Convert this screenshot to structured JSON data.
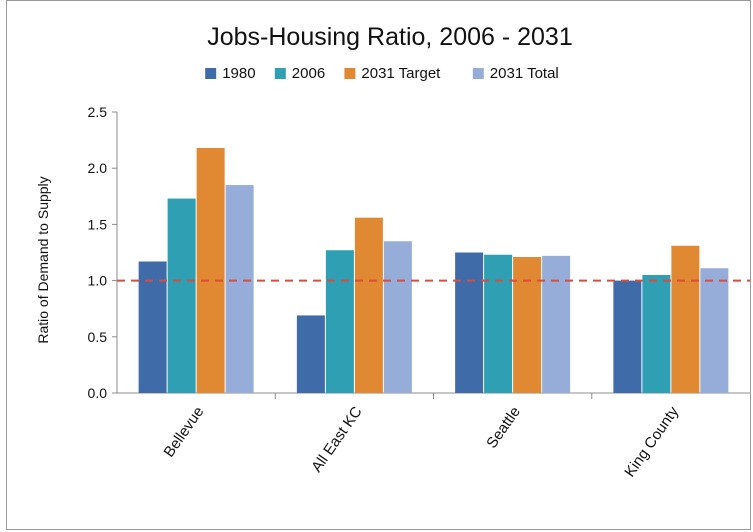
{
  "chart_data": {
    "type": "bar",
    "title": "Jobs-Housing Ratio, 2006 - 2031",
    "xlabel": "",
    "ylabel": "Ratio of Demand to Supply",
    "categories": [
      "Bellevue",
      "All East KC",
      "Seattle",
      "King County"
    ],
    "series": [
      {
        "name": "1980",
        "color": "#3f6ca8",
        "values": [
          1.17,
          0.69,
          1.25,
          1.0
        ]
      },
      {
        "name": "2006",
        "color": "#2f9fb3",
        "values": [
          1.73,
          1.27,
          1.23,
          1.05
        ]
      },
      {
        "name": "2031 Target",
        "color": "#e18833",
        "values": [
          2.18,
          1.56,
          1.21,
          1.31
        ]
      },
      {
        "name": "2031 Total",
        "color": "#95add8",
        "values": [
          1.85,
          1.35,
          1.22,
          1.11
        ]
      }
    ],
    "ylim": [
      0,
      2.5
    ],
    "yticks": [
      "0.0",
      "0.5",
      "1.0",
      "1.5",
      "2.0",
      "2.5"
    ],
    "reference_line": {
      "value": 1.0,
      "color": "#e04a3a",
      "style": "dashed"
    },
    "legend_position": "top",
    "grid": false
  }
}
